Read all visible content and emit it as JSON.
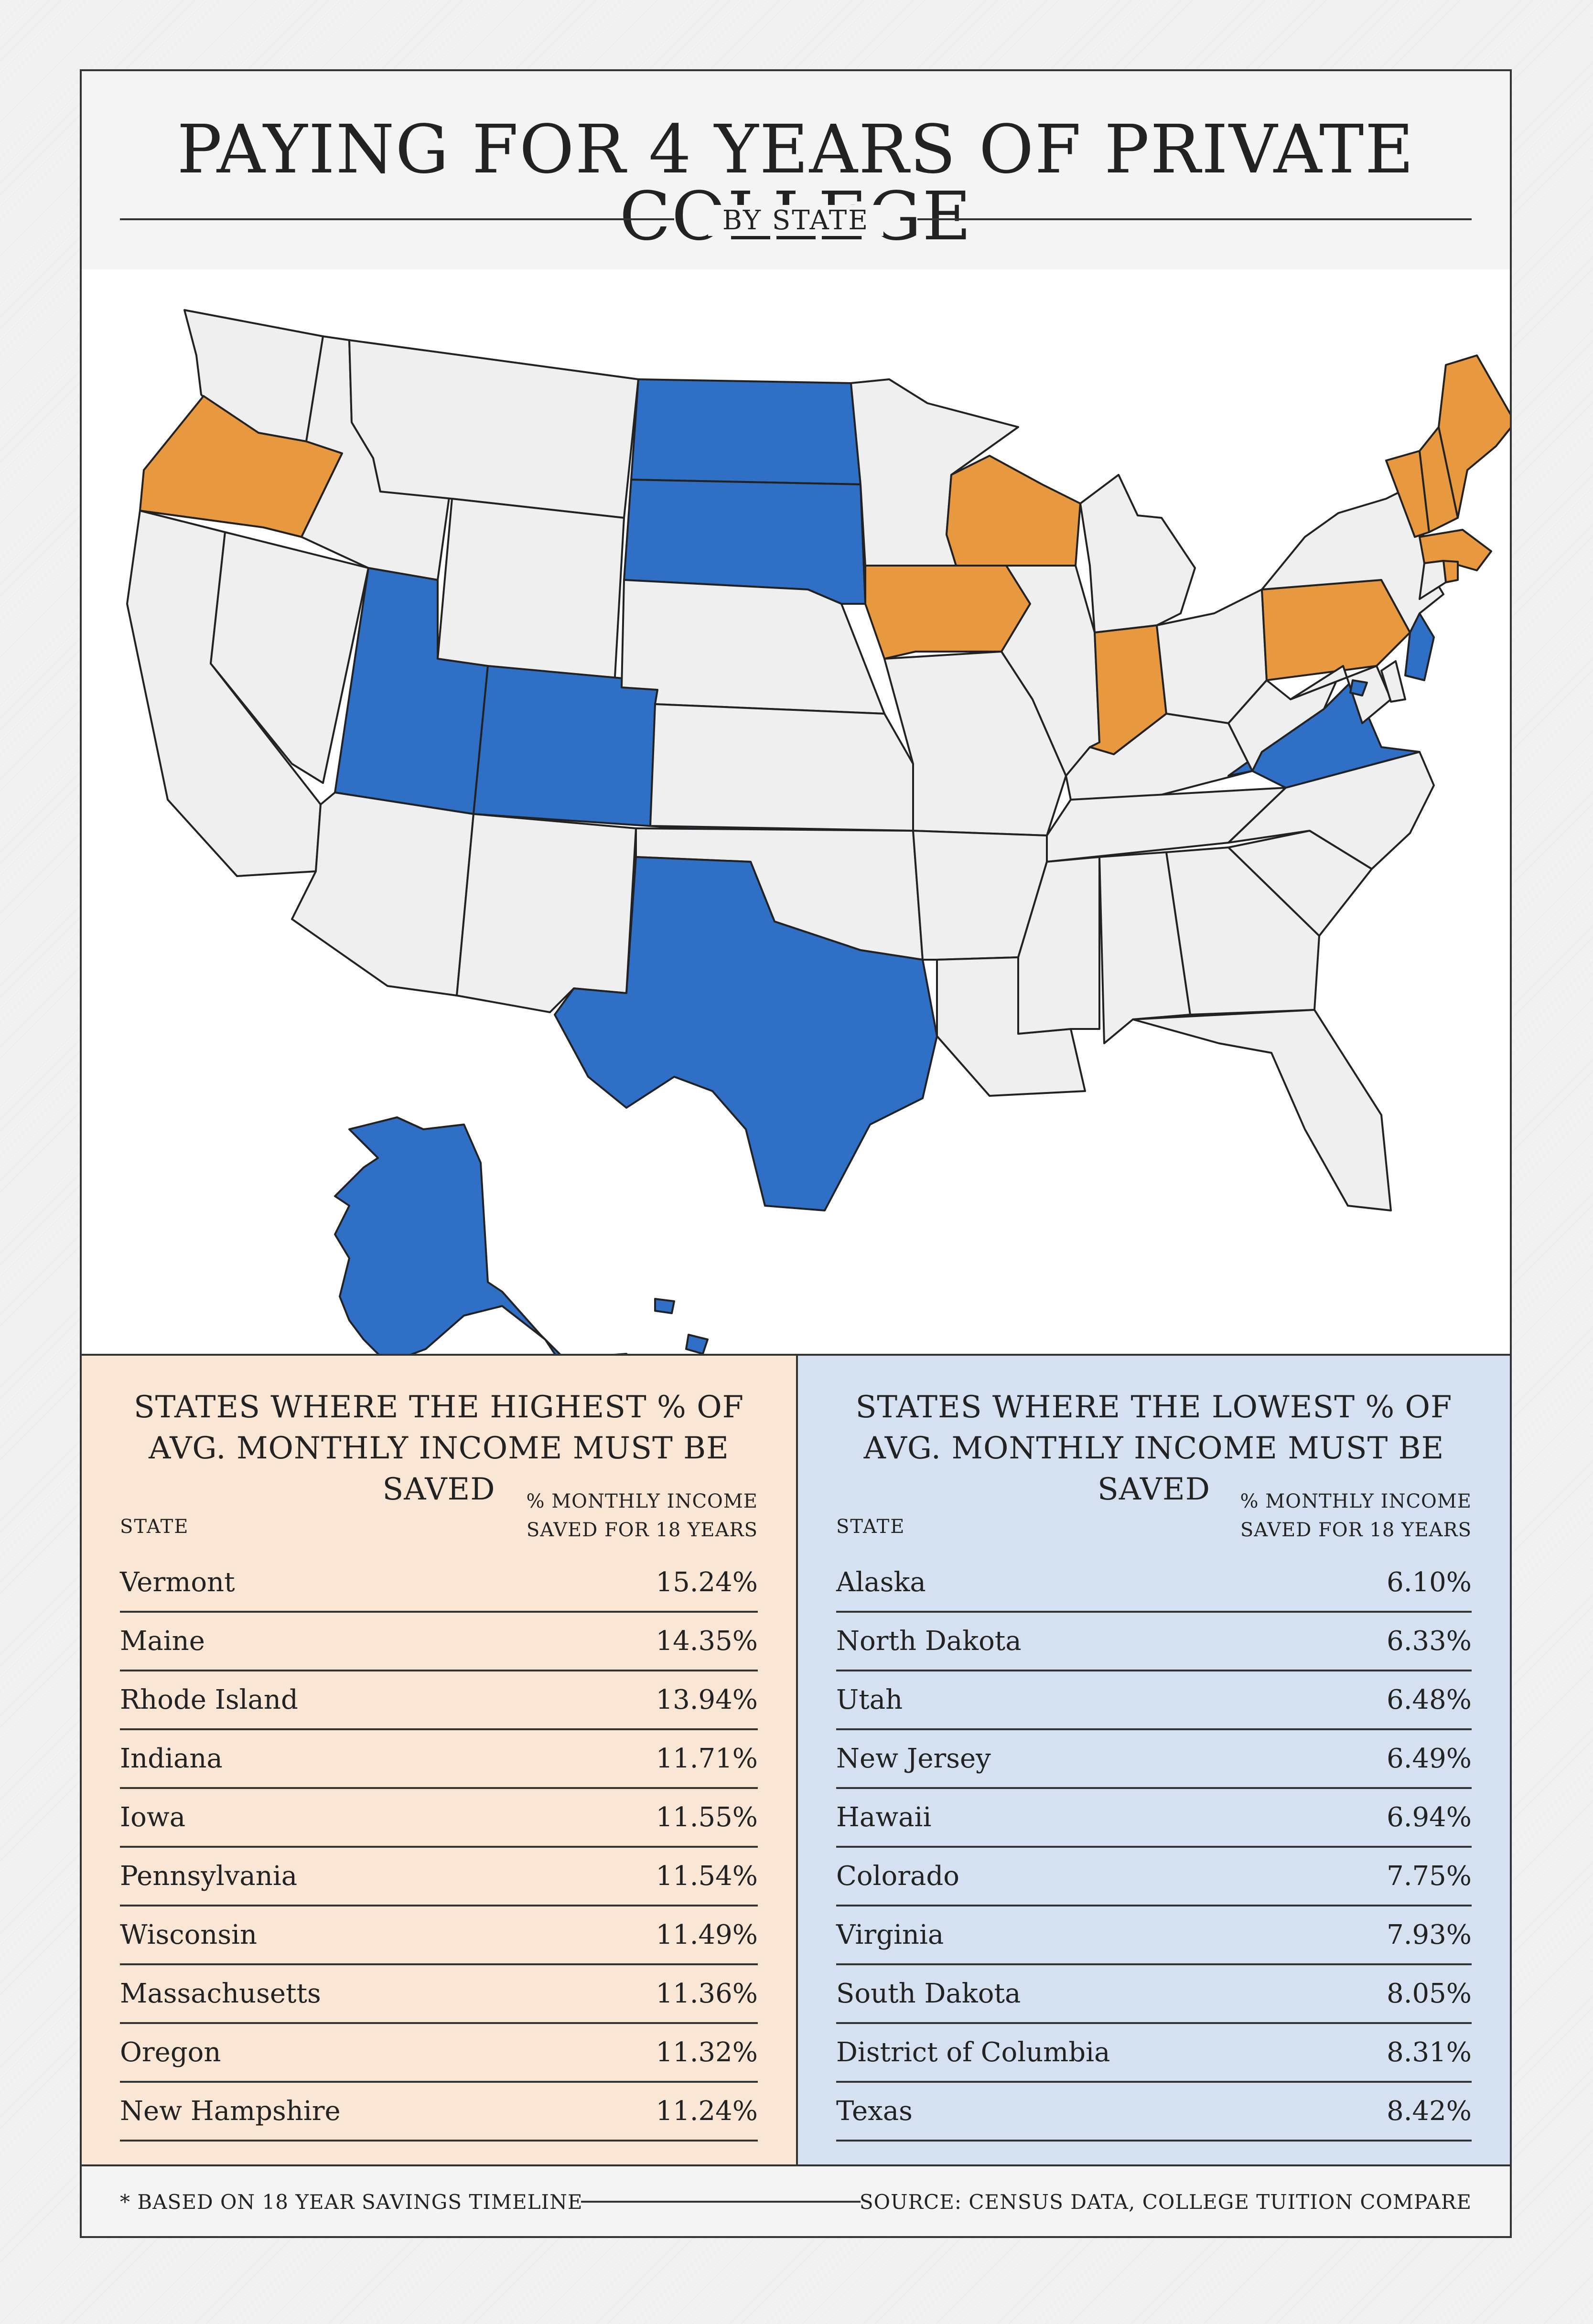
{
  "header": {
    "title": "PAYING FOR 4 YEARS OF PRIVATE COLLEGE",
    "subtitle": "BY STATE"
  },
  "colors": {
    "high": "#e8993f",
    "low": "#2f6fc6",
    "neutral": "#efefef"
  },
  "map": {
    "highlighted_high": [
      "Vermont",
      "Maine",
      "Rhode Island",
      "Indiana",
      "Iowa",
      "Pennsylvania",
      "Wisconsin",
      "Massachusetts",
      "Oregon",
      "New Hampshire"
    ],
    "highlighted_low": [
      "Alaska",
      "North Dakota",
      "Utah",
      "New Jersey",
      "Hawaii",
      "Colorado",
      "Virginia",
      "South Dakota",
      "District of Columbia",
      "Texas"
    ]
  },
  "high_table": {
    "title": "STATES WHERE THE HIGHEST % OF AVG. MONTHLY INCOME MUST BE SAVED",
    "col_state": "STATE",
    "col_value": "% MONTHLY INCOME SAVED FOR 18 YEARS",
    "rows": [
      {
        "state": "Vermont",
        "value": "15.24%"
      },
      {
        "state": "Maine",
        "value": "14.35%"
      },
      {
        "state": "Rhode Island",
        "value": "13.94%"
      },
      {
        "state": "Indiana",
        "value": "11.71%"
      },
      {
        "state": "Iowa",
        "value": "11.55%"
      },
      {
        "state": "Pennsylvania",
        "value": "11.54%"
      },
      {
        "state": "Wisconsin",
        "value": "11.49%"
      },
      {
        "state": "Massachusetts",
        "value": "11.36%"
      },
      {
        "state": "Oregon",
        "value": "11.32%"
      },
      {
        "state": "New Hampshire",
        "value": "11.24%"
      }
    ]
  },
  "low_table": {
    "title": "STATES WHERE THE LOWEST % OF AVG. MONTHLY INCOME MUST BE SAVED",
    "col_state": "STATE",
    "col_value": "% MONTHLY INCOME SAVED FOR 18 YEARS",
    "rows": [
      {
        "state": "Alaska",
        "value": "6.10%"
      },
      {
        "state": "North Dakota",
        "value": "6.33%"
      },
      {
        "state": "Utah",
        "value": "6.48%"
      },
      {
        "state": "New Jersey",
        "value": "6.49%"
      },
      {
        "state": "Hawaii",
        "value": "6.94%"
      },
      {
        "state": "Colorado",
        "value": "7.75%"
      },
      {
        "state": "Virginia",
        "value": "7.93%"
      },
      {
        "state": "South Dakota",
        "value": "8.05%"
      },
      {
        "state": "District of Columbia",
        "value": "8.31%"
      },
      {
        "state": "Texas",
        "value": "8.42%"
      }
    ]
  },
  "footer": {
    "note": "* BASED ON 18 YEAR SAVINGS TIMELINE",
    "source": "SOURCE: CENSUS DATA, COLLEGE TUITION COMPARE"
  },
  "chart_data": [
    {
      "type": "table",
      "title": "STATES WHERE THE HIGHEST % OF AVG. MONTHLY INCOME MUST BE SAVED",
      "columns": [
        "STATE",
        "% MONTHLY INCOME SAVED FOR 18 YEARS"
      ],
      "categories": [
        "Vermont",
        "Maine",
        "Rhode Island",
        "Indiana",
        "Iowa",
        "Pennsylvania",
        "Wisconsin",
        "Massachusetts",
        "Oregon",
        "New Hampshire"
      ],
      "values": [
        15.24,
        14.35,
        13.94,
        11.71,
        11.55,
        11.54,
        11.49,
        11.36,
        11.32,
        11.24
      ]
    },
    {
      "type": "table",
      "title": "STATES WHERE THE LOWEST % OF AVG. MONTHLY INCOME MUST BE SAVED",
      "columns": [
        "STATE",
        "% MONTHLY INCOME SAVED FOR 18 YEARS"
      ],
      "categories": [
        "Alaska",
        "North Dakota",
        "Utah",
        "New Jersey",
        "Hawaii",
        "Colorado",
        "Virginia",
        "South Dakota",
        "District of Columbia",
        "Texas"
      ],
      "values": [
        6.1,
        6.33,
        6.48,
        6.49,
        6.94,
        7.75,
        7.93,
        8.05,
        8.31,
        8.42
      ]
    }
  ]
}
